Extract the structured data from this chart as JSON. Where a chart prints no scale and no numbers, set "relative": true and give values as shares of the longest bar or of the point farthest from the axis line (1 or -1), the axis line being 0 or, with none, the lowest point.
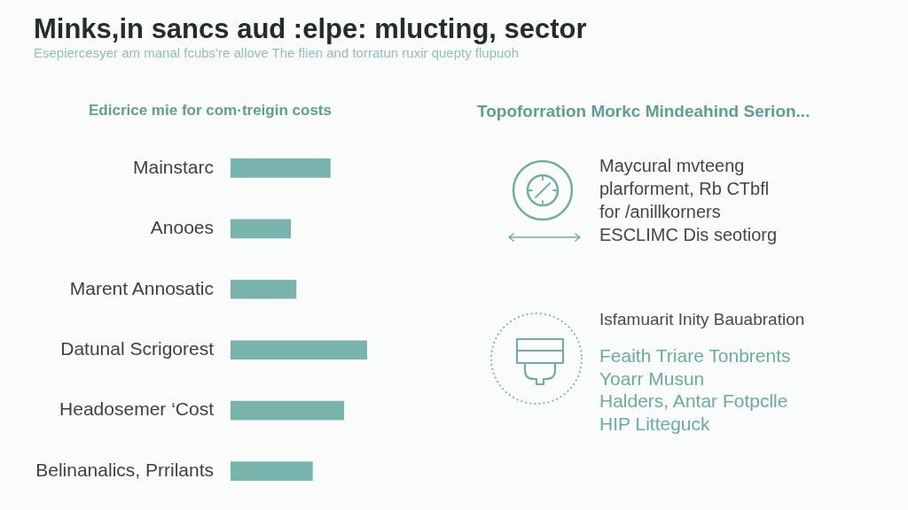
{
  "chart_data": [
    {
      "type": "other",
      "title": "Minks,in sancs aud :elpe: mlucting, sector",
      "subtitle": "Esepiercesyer am manal fcubs're allove The flien and torratun ruxir quepty flupuoh"
    },
    {
      "type": "bar",
      "orientation": "horizontal",
      "relative": true,
      "title": "Edicrice mie for com·treigin costs",
      "categories": [
        "Mainstarc",
        "Anooes",
        "Marent Annosatic",
        "Datunal Scrigorest",
        "Headosemer ‘Cost",
        "Belinanalics, Prrilants"
      ],
      "values": [
        0.73,
        0.44,
        0.48,
        1,
        0.83,
        0.6
      ],
      "color": "#78b4ac"
    },
    {
      "type": "other",
      "title": "Topoforration Morkc Mindeahind Serion...",
      "annotations": [
        "Maycural mvteeng",
        "plarforment, Rb CTbfl",
        "for /anillkorners",
        "ESCLIMC Dis seotiorg",
        "Isfamuarit Inity Bauabration",
        "Feaith Triare Tonbrents",
        "Yoarr Musun",
        "Halders, Antar Fotpclle",
        "HIP Litteguck"
      ]
    }
  ]
}
